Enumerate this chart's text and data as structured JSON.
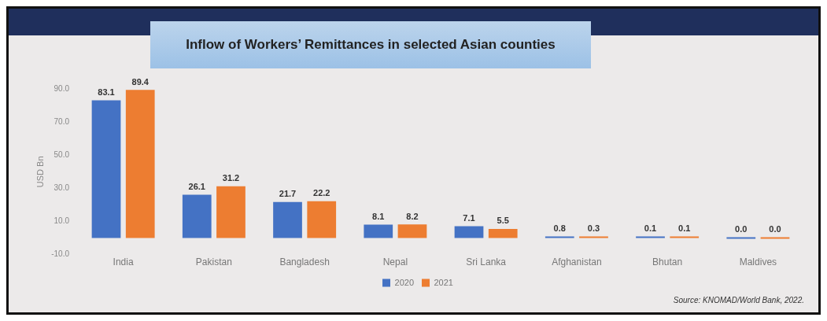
{
  "chart_data": {
    "type": "bar",
    "title": "Inflow of Workers’ Remittances in selected Asian counties",
    "ylabel": "USD Bn",
    "categories": [
      "India",
      "Pakistan",
      "Bangladesh",
      "Nepal",
      "Sri Lanka",
      "Afghanistan",
      "Bhutan",
      "Maldives"
    ],
    "series": [
      {
        "name": "2020",
        "color": "#4472c4",
        "values": [
          83.1,
          26.1,
          21.7,
          8.1,
          7.1,
          0.8,
          0.1,
          0.0
        ],
        "value_labels": [
          "83.1",
          "26.1",
          "21.7",
          "8.1",
          "7.1",
          "0.8",
          "0.1",
          "0.0"
        ]
      },
      {
        "name": "2021",
        "color": "#ed7d31",
        "values": [
          89.4,
          31.2,
          22.2,
          8.2,
          5.5,
          0.3,
          0.1,
          0.0
        ],
        "value_labels": [
          "89.4",
          "31.2",
          "22.2",
          "8.2",
          "5.5",
          "0.3",
          "0.1",
          "0.0"
        ]
      }
    ],
    "ylim": [
      -10,
      90
    ],
    "yticks": [
      {
        "value": -10,
        "label": "-10.0"
      },
      {
        "value": 10,
        "label": "10.0"
      },
      {
        "value": 30,
        "label": "30.0"
      },
      {
        "value": 50,
        "label": "50.0"
      },
      {
        "value": 70,
        "label": "70.0"
      },
      {
        "value": 90,
        "label": "90.0"
      }
    ],
    "grid": false,
    "legend": "bottom",
    "annotations": [
      "Source: KNOMAD/World Bank, 2022."
    ]
  }
}
